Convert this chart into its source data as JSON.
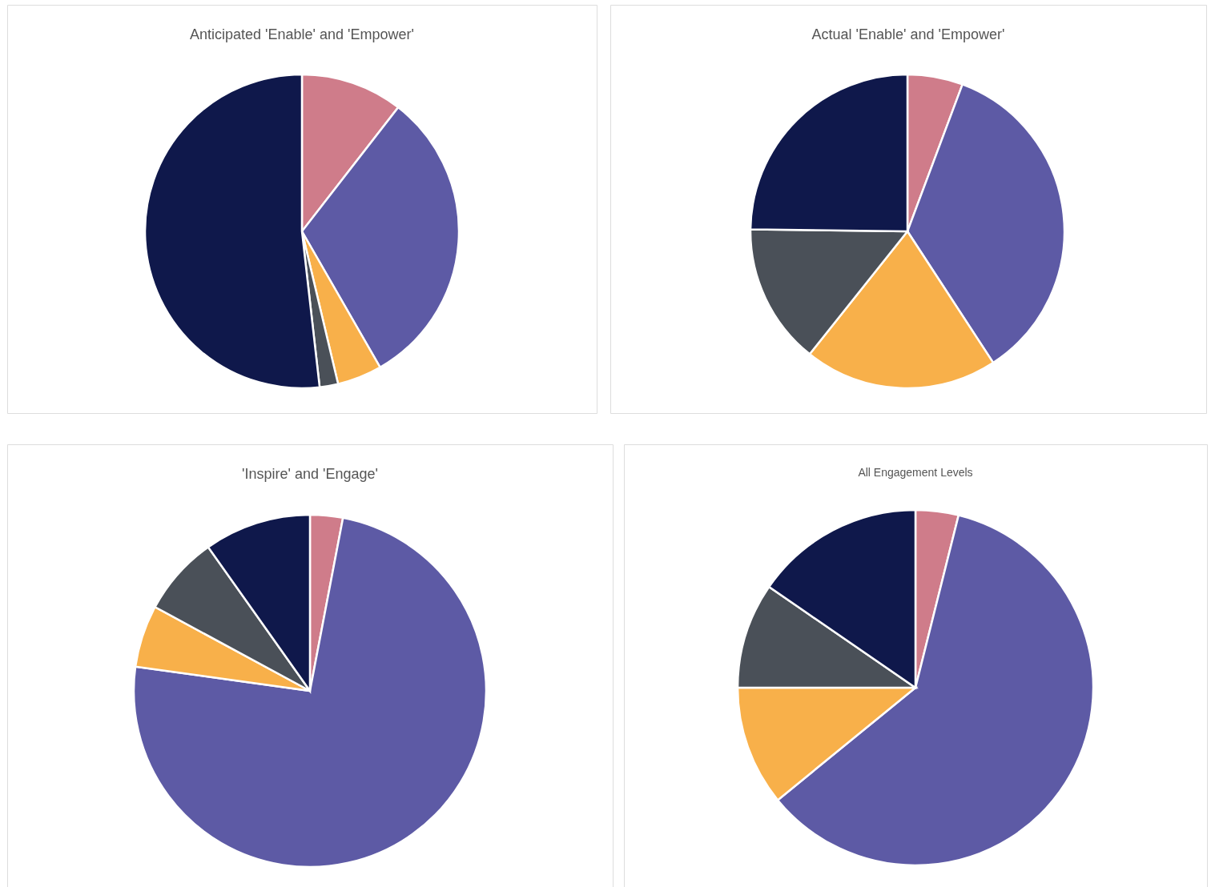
{
  "chart_data": [
    {
      "type": "pie",
      "title": "Anticipated 'Enable' and 'Empower'",
      "categories": [
        null,
        null,
        null,
        null,
        null
      ],
      "values": [
        10.5,
        31.2,
        4.6,
        1.9,
        51.8
      ],
      "colors": [
        "#cf7c8a",
        "#5d5aa5",
        "#f8b04a",
        "#4a5058",
        "#0f184b"
      ],
      "legend": false
    },
    {
      "type": "pie",
      "title": "Actual 'Enable' and 'Empower'",
      "categories": [
        null,
        null,
        null,
        null,
        null
      ],
      "values": [
        5.7,
        35.1,
        19.9,
        14.5,
        24.8
      ],
      "colors": [
        "#cf7c8a",
        "#5d5aa5",
        "#f8b04a",
        "#4a5058",
        "#0f184b"
      ],
      "legend": false
    },
    {
      "type": "pie",
      "title": "'Inspire' and 'Engage'",
      "categories": [
        null,
        null,
        null,
        null,
        null
      ],
      "values": [
        3.0,
        74.2,
        5.7,
        7.3,
        9.8
      ],
      "colors": [
        "#cf7c8a",
        "#5d5aa5",
        "#f8b04a",
        "#4a5058",
        "#0f184b"
      ],
      "legend": false
    },
    {
      "type": "pie",
      "title": "All Engagement Levels",
      "categories": [
        null,
        null,
        null,
        null,
        null
      ],
      "values": [
        3.9,
        60.2,
        10.9,
        9.6,
        15.4
      ],
      "colors": [
        "#cf7c8a",
        "#5d5aa5",
        "#f8b04a",
        "#4a5058",
        "#0f184b"
      ],
      "legend": false
    }
  ]
}
